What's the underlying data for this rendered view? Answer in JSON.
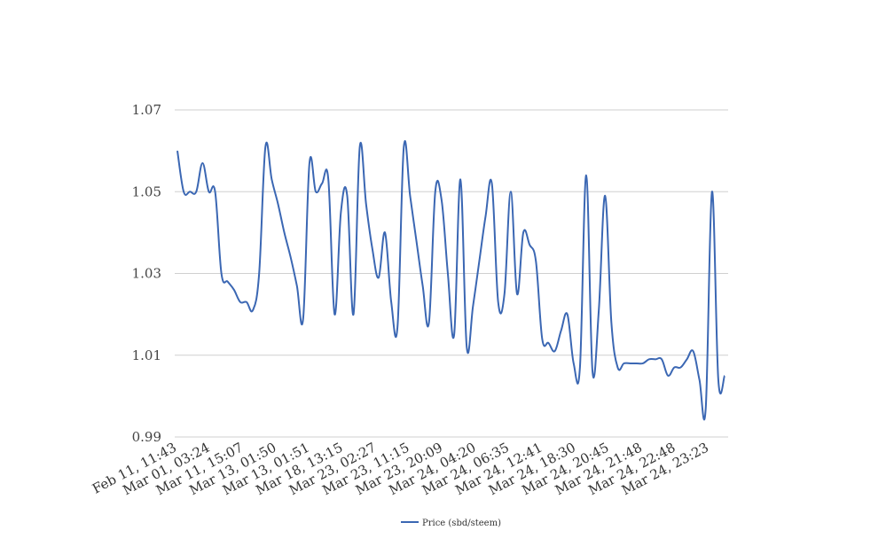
{
  "chart_data": {
    "type": "line",
    "title": "",
    "xlabel": "",
    "ylabel": "",
    "ylim": [
      0.99,
      1.07
    ],
    "yticks": [
      "0.99",
      "1.01",
      "1.03",
      "1.05",
      "1.07"
    ],
    "grid": "horizontal",
    "legend_position": "bottom-center",
    "xtick_labels": [
      "Feb 11, 11:43",
      "Mar 01, 03:24",
      "Mar 11, 15:07",
      "Mar 13, 01:50",
      "Mar 13, 01:51",
      "Mar 18, 13:15",
      "Mar 23, 02:27",
      "Mar 23, 11:15",
      "Mar 23, 20:09",
      "Mar 24, 04:20",
      "Mar 24, 06:35",
      "Mar 24, 12:41",
      "Mar 24, 18:30",
      "Mar 24, 20:45",
      "Mar 24, 21:48",
      "Mar 24, 22:48",
      "Mar 24, 23:23"
    ],
    "series": [
      {
        "name": "Price (sbd/steem)",
        "color": "#3b67b3",
        "values": [
          1.06,
          1.05,
          1.05,
          1.05,
          1.057,
          1.05,
          1.05,
          1.03,
          1.028,
          1.026,
          1.023,
          1.023,
          1.021,
          1.03,
          1.061,
          1.053,
          1.047,
          1.04,
          1.034,
          1.027,
          1.019,
          1.057,
          1.05,
          1.052,
          1.053,
          1.02,
          1.045,
          1.049,
          1.02,
          1.061,
          1.047,
          1.036,
          1.029,
          1.04,
          1.023,
          1.017,
          1.061,
          1.049,
          1.038,
          1.027,
          1.018,
          1.05,
          1.048,
          1.03,
          1.015,
          1.053,
          1.012,
          1.022,
          1.033,
          1.044,
          1.052,
          1.023,
          1.025,
          1.05,
          1.025,
          1.04,
          1.037,
          1.033,
          1.014,
          1.013,
          1.011,
          1.016,
          1.02,
          1.008,
          1.007,
          1.054,
          1.006,
          1.021,
          1.049,
          1.018,
          1.007,
          1.008,
          1.008,
          1.008,
          1.008,
          1.009,
          1.009,
          1.009,
          1.005,
          1.007,
          1.007,
          1.009,
          1.011,
          1.004,
          0.997,
          1.05,
          1.004,
          1.005
        ]
      }
    ]
  }
}
